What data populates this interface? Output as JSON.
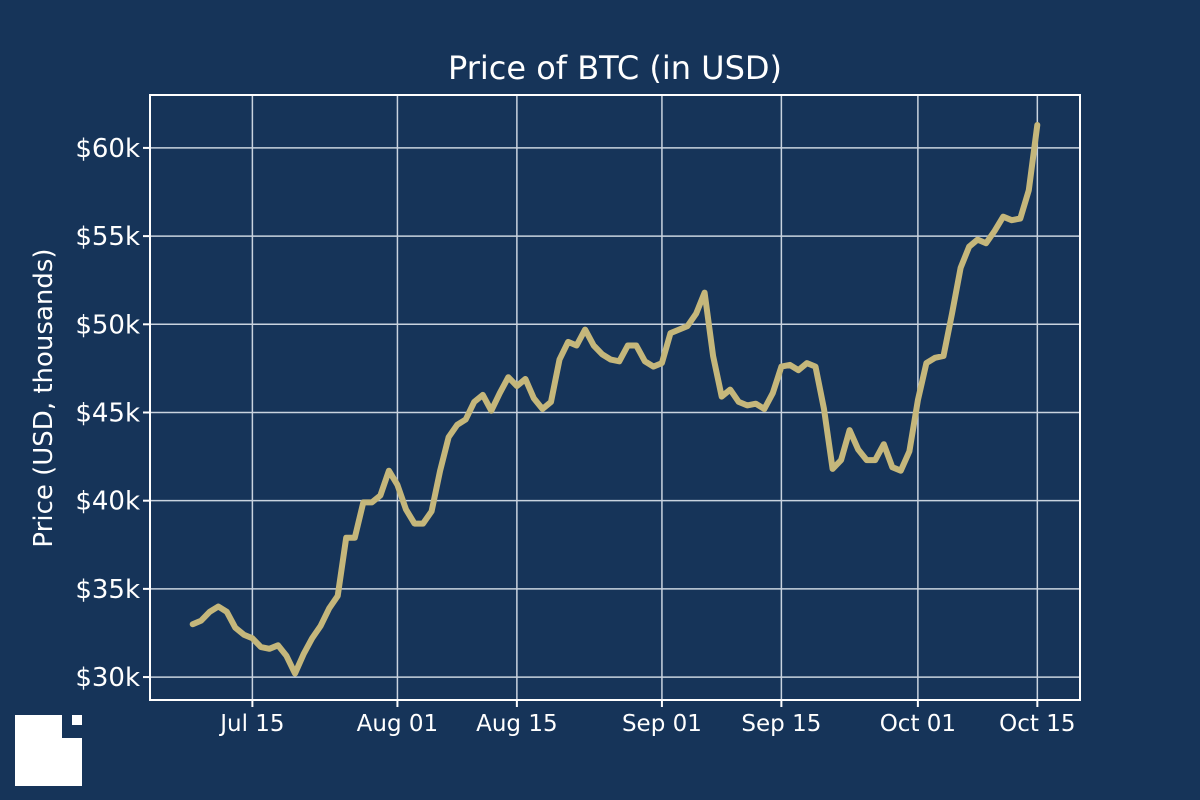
{
  "chart_data": {
    "type": "line",
    "title": "Price of BTC (in USD)",
    "xlabel": "",
    "ylabel": "Price (USD, thousands)",
    "x_start": "2021-07-08",
    "x_ticks": [
      {
        "date": "2021-07-15",
        "label": "Jul 15"
      },
      {
        "date": "2021-08-01",
        "label": "Aug 01"
      },
      {
        "date": "2021-08-15",
        "label": "Aug 15"
      },
      {
        "date": "2021-09-01",
        "label": "Sep 01"
      },
      {
        "date": "2021-09-15",
        "label": "Sep 15"
      },
      {
        "date": "2021-10-01",
        "label": "Oct 01"
      },
      {
        "date": "2021-10-15",
        "label": "Oct 15"
      }
    ],
    "y_ticks": [
      {
        "value": 30,
        "label": "$30k"
      },
      {
        "value": 35,
        "label": "$35k"
      },
      {
        "value": 40,
        "label": "$40k"
      },
      {
        "value": 45,
        "label": "$45k"
      },
      {
        "value": 50,
        "label": "$50k"
      },
      {
        "value": 55,
        "label": "$55k"
      },
      {
        "value": 60,
        "label": "$60k"
      }
    ],
    "xlim": [
      "2021-07-03",
      "2021-10-20"
    ],
    "ylim": [
      28.7,
      63.0
    ],
    "grid": true,
    "line_color": "#c5b77b",
    "series": [
      {
        "values": [
          33.0,
          33.2,
          33.7,
          34.0,
          33.7,
          32.8,
          32.4,
          32.2,
          31.7,
          31.6,
          31.8,
          31.2,
          30.2,
          31.3,
          32.2,
          32.9,
          33.9,
          34.6,
          37.9,
          37.9,
          39.9,
          39.9,
          40.3,
          41.7,
          40.9,
          39.5,
          38.7,
          38.7,
          39.4,
          41.7,
          43.6,
          44.3,
          44.6,
          45.6,
          46.0,
          45.1,
          46.1,
          47.0,
          46.5,
          46.9,
          45.8,
          45.2,
          45.6,
          48.0,
          49.0,
          48.8,
          49.7,
          48.8,
          48.3,
          48.0,
          47.9,
          48.8,
          48.8,
          47.9,
          47.6,
          47.8,
          49.5,
          49.7,
          49.9,
          50.6,
          51.8,
          48.2,
          45.9,
          46.3,
          45.6,
          45.4,
          45.5,
          45.2,
          46.1,
          47.6,
          47.7,
          47.4,
          47.8,
          47.6,
          45.2,
          41.8,
          42.3,
          44.0,
          42.9,
          42.3,
          42.3,
          43.2,
          41.9,
          41.7,
          42.8,
          45.7,
          47.8,
          48.1,
          48.2,
          50.6,
          53.2,
          54.4,
          54.8,
          54.6,
          55.3,
          56.1,
          55.9,
          56.0,
          57.6,
          61.3
        ]
      }
    ]
  }
}
